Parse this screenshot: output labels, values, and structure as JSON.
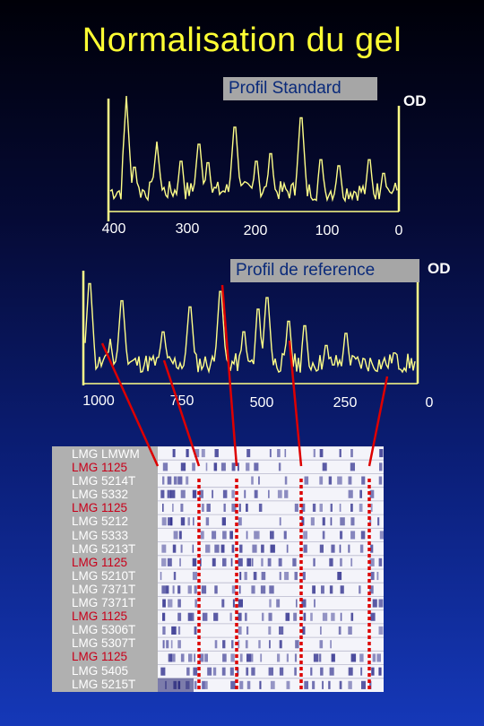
{
  "title": "Normalisation du gel",
  "standard_profile": {
    "label": "Profil Standard",
    "y_label": "OD",
    "x_ticks": [
      "400",
      "300",
      "200",
      "100",
      "0"
    ]
  },
  "reference_profile": {
    "label": "Profil de reference",
    "y_label": "OD",
    "x_ticks": [
      "1000",
      "750",
      "500",
      "250",
      "0"
    ]
  },
  "gel": {
    "lanes": [
      {
        "label": "LMG LMWM",
        "kind": "sample"
      },
      {
        "label": "LMG 1125",
        "kind": "std"
      },
      {
        "label": "LMG 5214T",
        "kind": "sample"
      },
      {
        "label": "LMG 5332",
        "kind": "sample"
      },
      {
        "label": "LMG 1125",
        "kind": "std"
      },
      {
        "label": "LMG 5212",
        "kind": "sample"
      },
      {
        "label": "LMG 5333",
        "kind": "sample"
      },
      {
        "label": "LMG 5213T",
        "kind": "sample"
      },
      {
        "label": "LMG 1125",
        "kind": "std"
      },
      {
        "label": "LMG 5210T",
        "kind": "sample"
      },
      {
        "label": "LMG 7371T",
        "kind": "sample"
      },
      {
        "label": "LMG 7371T",
        "kind": "sample"
      },
      {
        "label": "LMG 1125",
        "kind": "std"
      },
      {
        "label": "LMG 5306T",
        "kind": "sample"
      },
      {
        "label": "LMG 5307T",
        "kind": "sample"
      },
      {
        "label": "LMG 1125",
        "kind": "std"
      },
      {
        "label": "LMG 5405",
        "kind": "sample"
      },
      {
        "label": "LMG 5215T",
        "kind": "sample"
      }
    ]
  },
  "colors": {
    "title": "#ffff33",
    "trace": "#ffff88",
    "std_label": "#c8001a",
    "sample_label": "#ffffff",
    "marker": "#dd0000",
    "band": "#2a2a8a"
  }
}
